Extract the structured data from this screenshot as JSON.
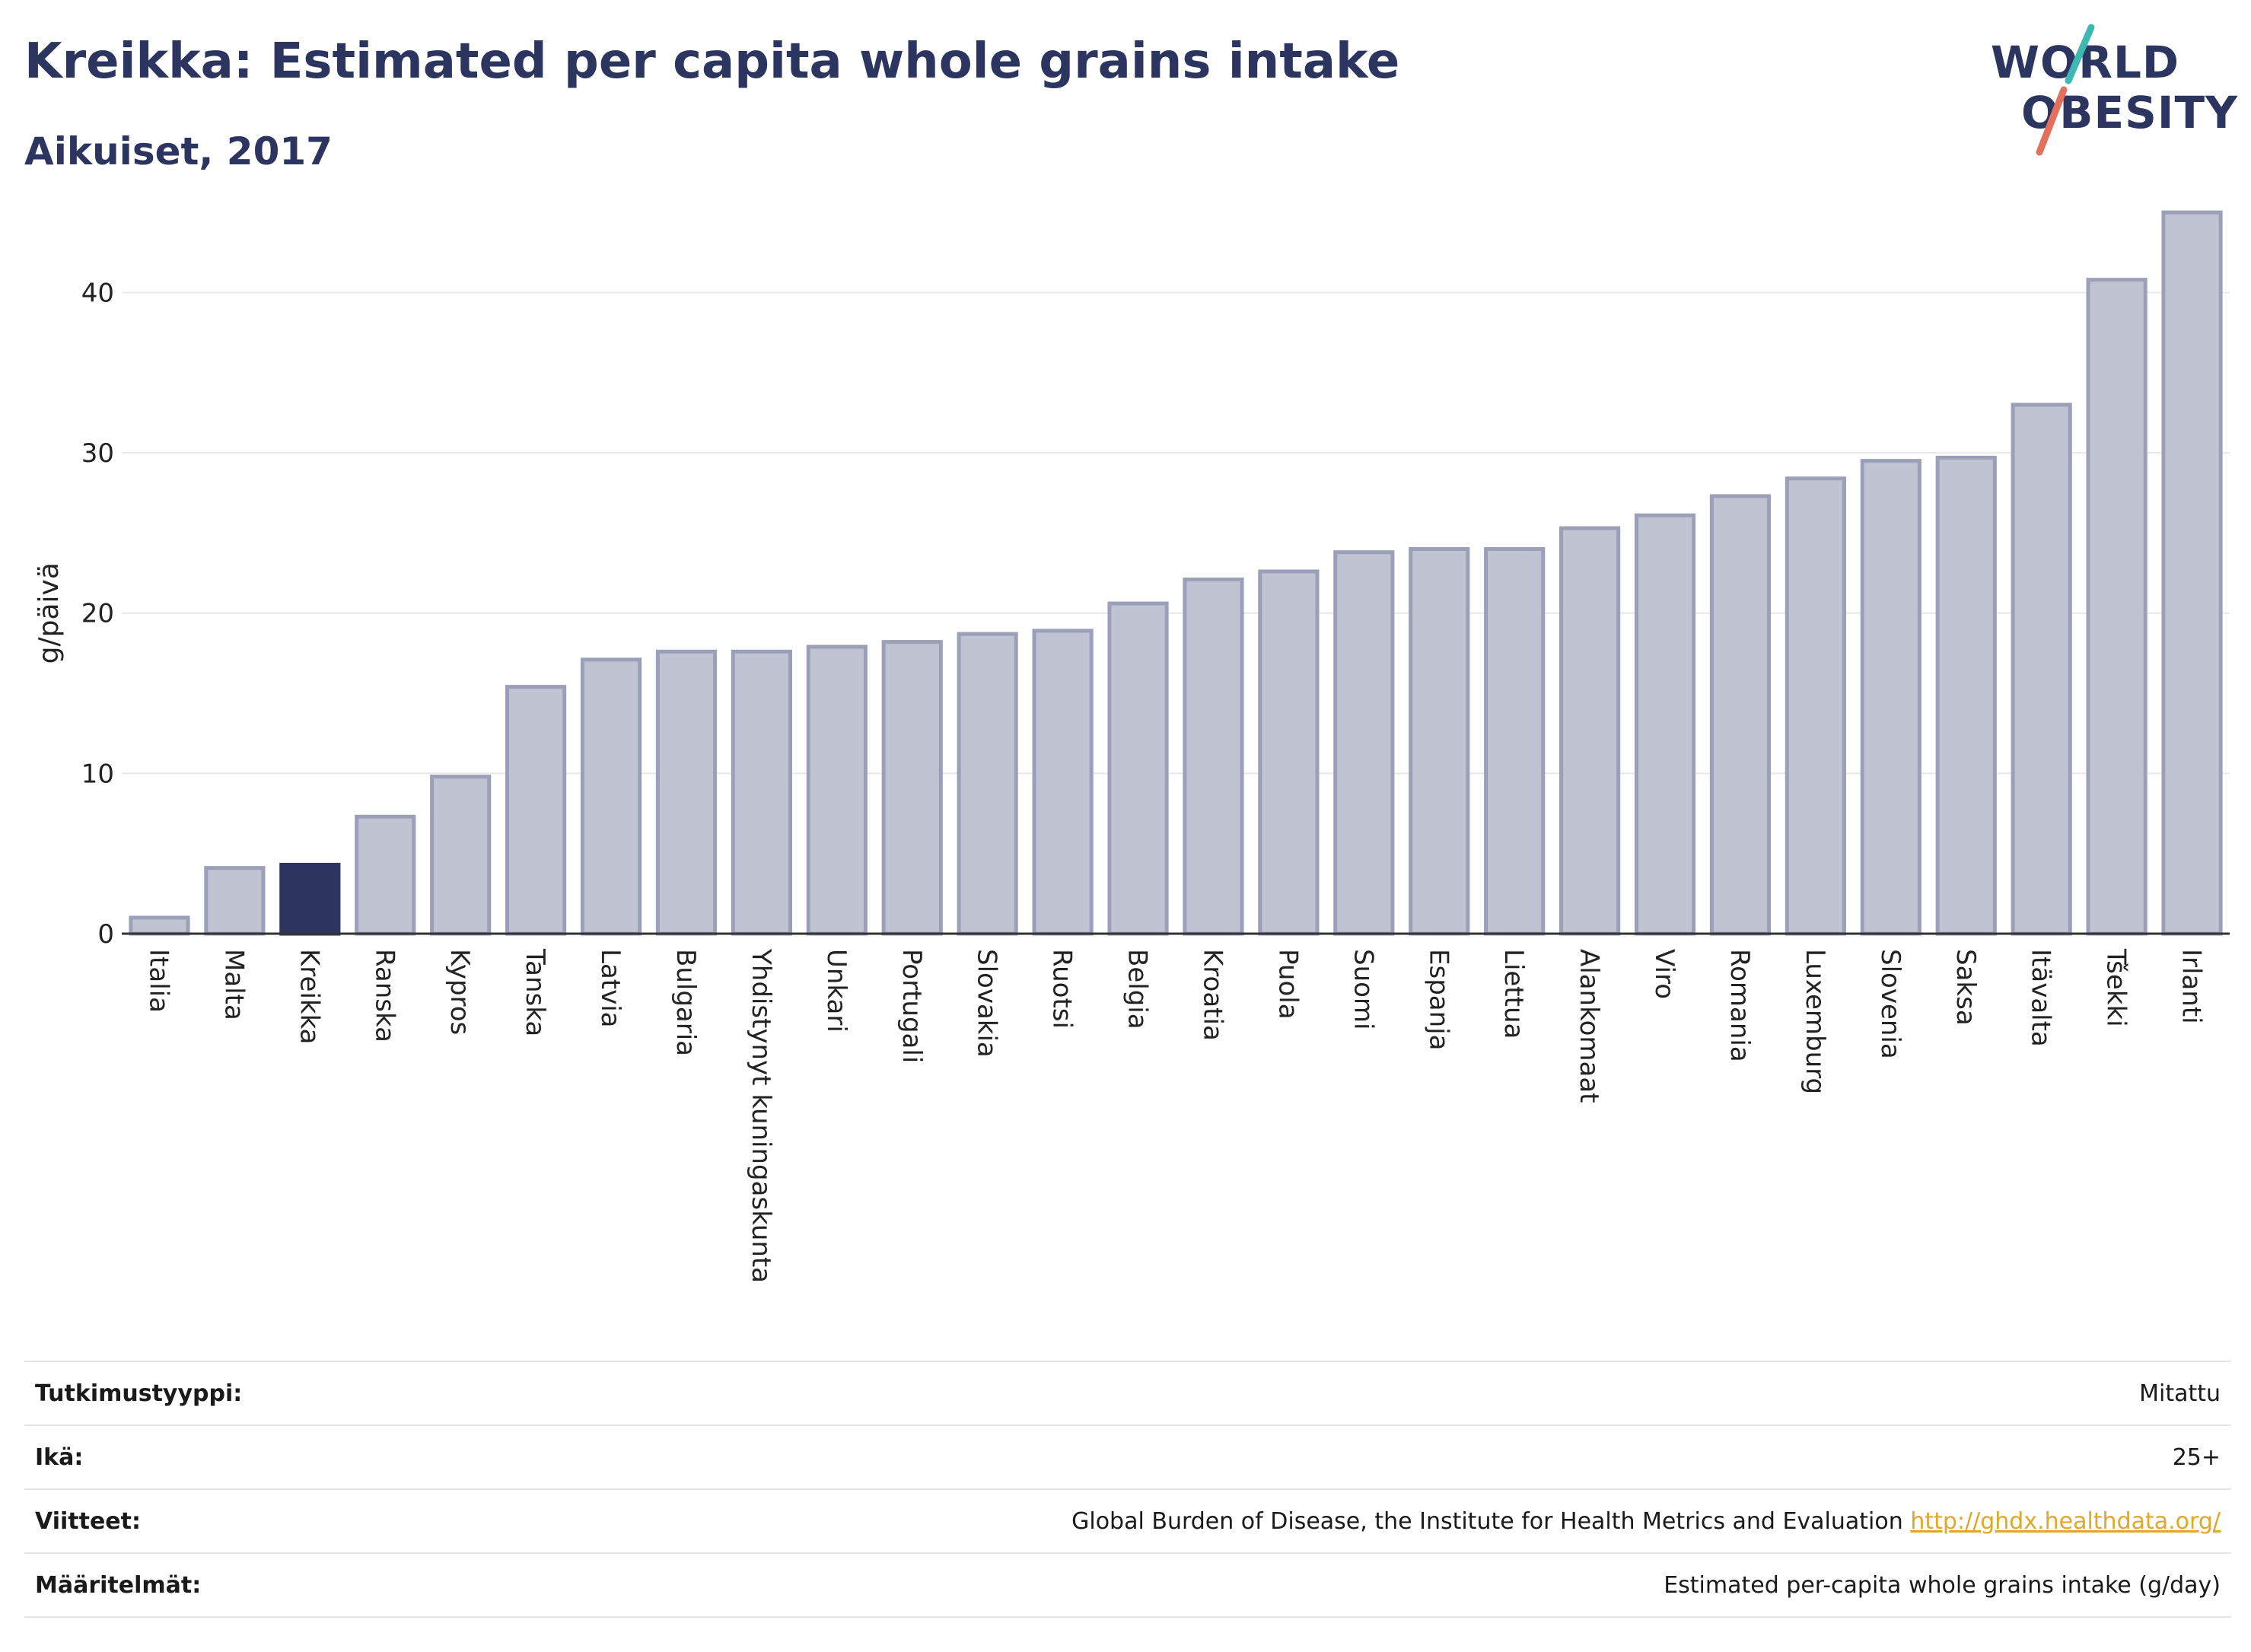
{
  "title": "Kreikka: Estimated per capita whole grains intake",
  "subtitle": "Aikuiset, 2017",
  "logo": {
    "line1": "WORLD",
    "line2": "OBESITY"
  },
  "colors": {
    "highlight": "#2c355f",
    "bar_fill": "#c0c3d1",
    "bar_stroke": "#9ba0b8",
    "title": "#2c355f",
    "link": "#e0a826"
  },
  "chart_data": {
    "type": "bar",
    "ylabel": "g/päivä",
    "xlabel": "",
    "ylim": [
      0,
      47
    ],
    "yticks": [
      0,
      10,
      20,
      30,
      40
    ],
    "grid": true,
    "highlight": "Kreikka",
    "categories": [
      "Italia",
      "Malta",
      "Kreikka",
      "Ranska",
      "Kypros",
      "Tanska",
      "Latvia",
      "Bulgaria",
      "Yhdistynyt kuningaskunta",
      "Unkari",
      "Portugali",
      "Slovakia",
      "Ruotsi",
      "Belgia",
      "Kroatia",
      "Puola",
      "Suomi",
      "Espanja",
      "Liettua",
      "Alankomaat",
      "Viro",
      "Romania",
      "Luxemburg",
      "Slovenia",
      "Saksa",
      "Itävalta",
      "Tšekki",
      "Irlanti"
    ],
    "values": [
      1.0,
      4.1,
      4.3,
      7.3,
      9.8,
      15.4,
      17.1,
      17.6,
      17.6,
      17.9,
      18.2,
      18.7,
      18.9,
      20.6,
      22.1,
      22.6,
      23.8,
      24.0,
      24.0,
      25.3,
      26.1,
      27.3,
      28.4,
      29.5,
      29.7,
      33.0,
      40.8,
      45.0
    ]
  },
  "meta": [
    {
      "label": "Tutkimustyyppi:",
      "value": "Mitattu"
    },
    {
      "label": "Ikä:",
      "value": "25+"
    },
    {
      "label": "Viitteet:",
      "value": "Global Burden of Disease, the Institute for Health Metrics and Evaluation",
      "link": "http://ghdx.healthdata.org/"
    },
    {
      "label": "Määritelmät:",
      "value": "Estimated per-capita whole grains intake (g/day)"
    }
  ]
}
